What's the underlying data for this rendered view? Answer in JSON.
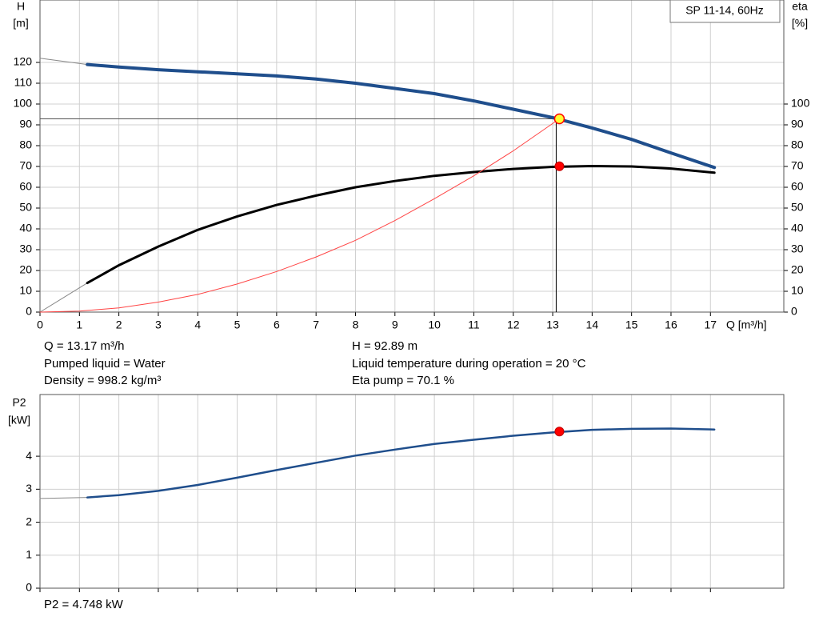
{
  "chart_data": [
    {
      "type": "line",
      "title": "SP 11-14, 60Hz",
      "y_label": [
        "H",
        "[m]"
      ],
      "y2_label": [
        "eta",
        "[%]"
      ],
      "x_label": "Q [m³/h]",
      "xlim": [
        0,
        18.86
      ],
      "xticks": [
        0,
        1,
        2,
        3,
        4,
        5,
        6,
        7,
        8,
        9,
        10,
        11,
        12,
        13,
        14,
        15,
        16,
        17
      ],
      "ylim": [
        0,
        150
      ],
      "yticks": [
        0,
        10,
        20,
        30,
        40,
        50,
        60,
        70,
        80,
        90,
        100,
        110,
        120
      ],
      "y2lim": [
        0,
        150
      ],
      "y2ticks": [
        0,
        10,
        20,
        30,
        40,
        50,
        60,
        70,
        80,
        90,
        100
      ],
      "grid": true,
      "series": [
        {
          "color": "#888888",
          "width": 1,
          "x": [
            0,
            1.2
          ],
          "values": [
            122,
            119
          ]
        },
        {
          "color": "#1f4e8c",
          "width": 4,
          "x": [
            1.2,
            2,
            3,
            4,
            5,
            6,
            7,
            8,
            9,
            10,
            11,
            12,
            13,
            14,
            15,
            16,
            17.1
          ],
          "values": [
            119,
            117.8,
            116.5,
            115.5,
            114.5,
            113.5,
            112,
            110,
            107.5,
            105,
            101.5,
            97.5,
            93.5,
            88.5,
            83,
            76.5,
            69.5
          ]
        },
        {
          "color": "#888888",
          "width": 1,
          "axis": "y2",
          "x": [
            0,
            1.2
          ],
          "values": [
            0,
            14
          ]
        },
        {
          "color": "#000000",
          "width": 3,
          "axis": "y2",
          "x": [
            1.2,
            2,
            3,
            4,
            5,
            6,
            7,
            8,
            9,
            10,
            11,
            12,
            13,
            14,
            15,
            16,
            17.1
          ],
          "values": [
            14,
            22.5,
            31.5,
            39.5,
            46,
            51.5,
            56,
            60,
            63,
            65.5,
            67.3,
            68.8,
            69.8,
            70.2,
            70,
            69,
            67
          ]
        },
        {
          "color": "#ff4444",
          "width": 1,
          "x": [
            0,
            1,
            2,
            3,
            4,
            5,
            6,
            7,
            8,
            9,
            10,
            11,
            12,
            13.17
          ],
          "values": [
            0,
            0.5,
            2,
            4.8,
            8.5,
            13.5,
            19.5,
            26.5,
            34.5,
            44,
            54.5,
            65.5,
            77.5,
            92.89
          ]
        }
      ],
      "operating_point": {
        "x": 13.17,
        "h": 92.89,
        "eta": 70.1
      },
      "annotations": [
        "Q = 13.17 m³/h",
        "Pumped liquid = Water",
        "Density = 998.2 kg/m³",
        "H = 92.89 m",
        "Liquid temperature during operation = 20 °C",
        "Eta pump = 70.1 %"
      ]
    },
    {
      "type": "line",
      "y_label": [
        "P2",
        "[kW]"
      ],
      "xlim": [
        0,
        18.86
      ],
      "ylim": [
        0,
        5.87
      ],
      "yticks": [
        0,
        1,
        2,
        3,
        4
      ],
      "grid": true,
      "series": [
        {
          "color": "#888888",
          "width": 1,
          "x": [
            0,
            1.2
          ],
          "values": [
            2.72,
            2.75
          ]
        },
        {
          "color": "#1f4e8c",
          "width": 2.5,
          "x": [
            1.2,
            2,
            3,
            4,
            5,
            6,
            7,
            8,
            9,
            10,
            11,
            12,
            13,
            14,
            15,
            16,
            17.1
          ],
          "values": [
            2.75,
            2.82,
            2.95,
            3.13,
            3.35,
            3.58,
            3.8,
            4.02,
            4.2,
            4.37,
            4.5,
            4.62,
            4.72,
            4.8,
            4.83,
            4.84,
            4.81
          ]
        }
      ],
      "operating_point": {
        "x": 13.17,
        "p2": 4.748
      },
      "annotations": [
        "P2 = 4.748 kW"
      ]
    }
  ]
}
